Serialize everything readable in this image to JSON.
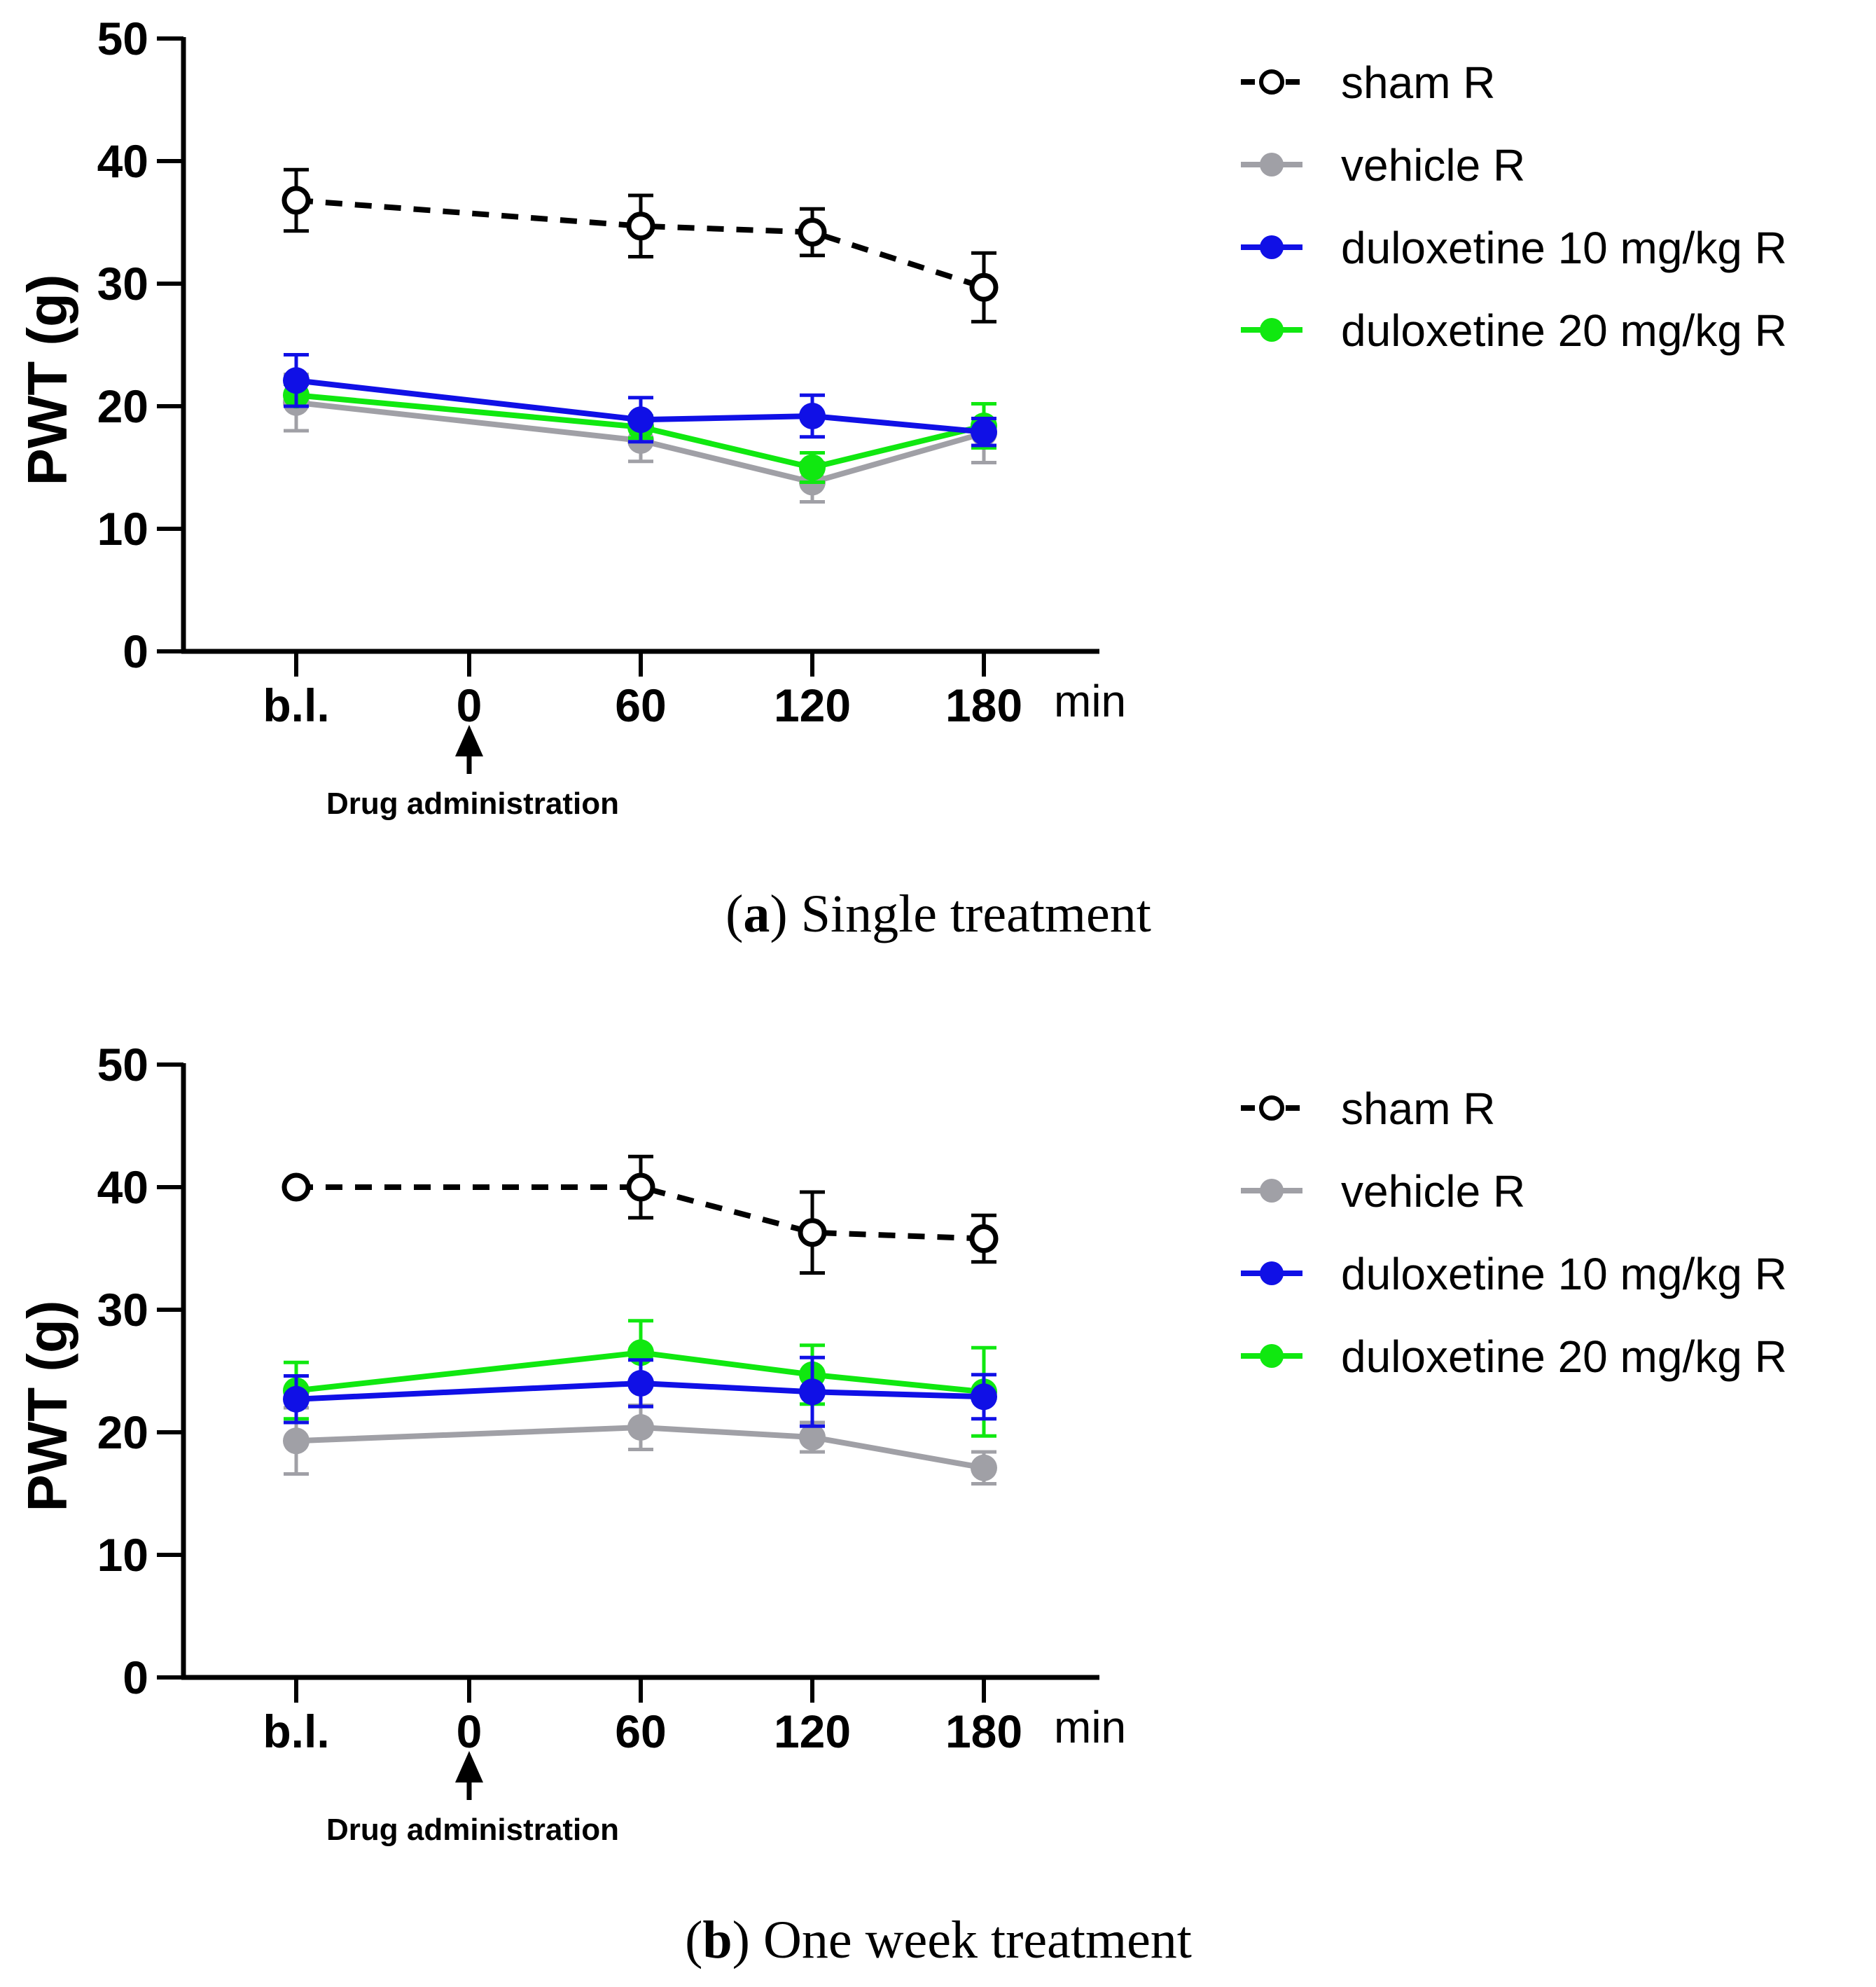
{
  "chart_data": [
    {
      "type": "line",
      "panel": "a",
      "caption_letter": "a",
      "caption_text": "Single treatment",
      "ylabel": "PWT (g)",
      "xunit": "min",
      "ylim": [
        0,
        50
      ],
      "yticks": [
        0,
        10,
        20,
        30,
        40,
        50
      ],
      "categories": [
        "b.l.",
        "0",
        "60",
        "120",
        "180"
      ],
      "annotation": "Drug administration",
      "series": [
        {
          "name": "sham R",
          "color": "#000000",
          "style": "dashed",
          "marker": "open",
          "points": [
            {
              "x": "b.l.",
              "y": 36.8,
              "err": 2.5
            },
            {
              "x": "60",
              "y": 34.7,
              "err": 2.5
            },
            {
              "x": "120",
              "y": 34.2,
              "err": 1.9
            },
            {
              "x": "180",
              "y": 29.7,
              "err": 2.8
            }
          ]
        },
        {
          "name": "vehicle R",
          "color": "#a0a0a6",
          "style": "solid",
          "marker": "filled",
          "points": [
            {
              "x": "b.l.",
              "y": 20.3,
              "err": 2.3
            },
            {
              "x": "60",
              "y": 17.2,
              "err": 1.7
            },
            {
              "x": "120",
              "y": 13.8,
              "err": 1.6
            },
            {
              "x": "180",
              "y": 17.8,
              "err": 2.4
            }
          ]
        },
        {
          "name": "duloxetine 10 mg/kg R",
          "color": "#1010e6",
          "style": "solid",
          "marker": "filled",
          "points": [
            {
              "x": "b.l.",
              "y": 22.1,
              "err": 2.1
            },
            {
              "x": "60",
              "y": 18.9,
              "err": 1.8
            },
            {
              "x": "120",
              "y": 19.2,
              "err": 1.7
            },
            {
              "x": "180",
              "y": 17.9,
              "err": 1.1
            }
          ]
        },
        {
          "name": "duloxetine 20 mg/kg R",
          "color": "#10e810",
          "style": "solid",
          "marker": "filled",
          "points": [
            {
              "x": "b.l.",
              "y": 20.9,
              "err": 0.9
            },
            {
              "x": "60",
              "y": 18.3,
              "err": 0.9
            },
            {
              "x": "120",
              "y": 15.0,
              "err": 1.2
            },
            {
              "x": "180",
              "y": 18.4,
              "err": 1.8
            }
          ]
        }
      ]
    },
    {
      "type": "line",
      "panel": "b",
      "caption_letter": "b",
      "caption_text": "One week treatment",
      "ylabel": "PWT (g)",
      "xunit": "min",
      "ylim": [
        0,
        50
      ],
      "yticks": [
        0,
        10,
        20,
        30,
        40,
        50
      ],
      "categories": [
        "b.l.",
        "0",
        "60",
        "120",
        "180"
      ],
      "annotation": "Drug administration",
      "series": [
        {
          "name": "sham R",
          "color": "#000000",
          "style": "dashed",
          "marker": "open",
          "points": [
            {
              "x": "b.l.",
              "y": 40.0,
              "err": 0
            },
            {
              "x": "60",
              "y": 40.0,
              "err": 2.5
            },
            {
              "x": "120",
              "y": 36.3,
              "err": 3.3
            },
            {
              "x": "180",
              "y": 35.8,
              "err": 1.9
            }
          ]
        },
        {
          "name": "vehicle R",
          "color": "#a0a0a6",
          "style": "solid",
          "marker": "filled",
          "points": [
            {
              "x": "b.l.",
              "y": 19.3,
              "err": 2.7
            },
            {
              "x": "60",
              "y": 20.4,
              "err": 1.8
            },
            {
              "x": "120",
              "y": 19.6,
              "err": 1.2
            },
            {
              "x": "180",
              "y": 17.1,
              "err": 1.3
            }
          ]
        },
        {
          "name": "duloxetine 10 mg/kg R",
          "color": "#1010e6",
          "style": "solid",
          "marker": "filled",
          "points": [
            {
              "x": "b.l.",
              "y": 22.7,
              "err": 1.9
            },
            {
              "x": "60",
              "y": 24.0,
              "err": 1.9
            },
            {
              "x": "120",
              "y": 23.3,
              "err": 2.8
            },
            {
              "x": "180",
              "y": 22.9,
              "err": 1.8
            }
          ]
        },
        {
          "name": "duloxetine 20 mg/kg R",
          "color": "#10e810",
          "style": "solid",
          "marker": "filled",
          "points": [
            {
              "x": "b.l.",
              "y": 23.4,
              "err": 2.3
            },
            {
              "x": "60",
              "y": 26.5,
              "err": 2.6
            },
            {
              "x": "120",
              "y": 24.7,
              "err": 2.4
            },
            {
              "x": "180",
              "y": 23.3,
              "err": 3.6
            }
          ]
        }
      ]
    }
  ]
}
